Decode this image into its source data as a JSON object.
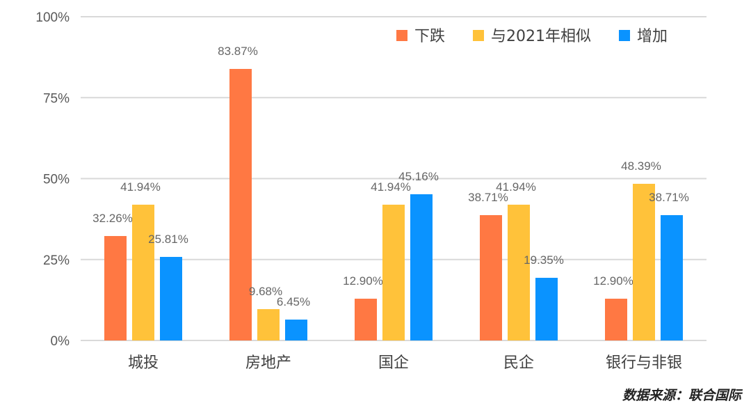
{
  "chart_data": {
    "type": "bar",
    "categories": [
      "城投",
      "房地产",
      "国企",
      "民企",
      "银行与非银"
    ],
    "series": [
      {
        "name": "下跌",
        "color": "#FF7843",
        "values": [
          32.26,
          83.87,
          12.9,
          38.71,
          12.9
        ]
      },
      {
        "name": "与2021年相似",
        "color": "#FFC23A",
        "values": [
          41.94,
          9.68,
          41.94,
          41.94,
          48.39
        ]
      },
      {
        "name": "增加",
        "color": "#0A93FF",
        "values": [
          25.81,
          6.45,
          45.16,
          19.35,
          38.71
        ]
      }
    ],
    "yticks": [
      "0%",
      "25%",
      "50%",
      "75%",
      "100%"
    ],
    "ylim": [
      0,
      100
    ],
    "grid": true,
    "legend": "top-right",
    "title": "",
    "xlabel": "",
    "ylabel": ""
  },
  "source": "数据来源：联合国际"
}
